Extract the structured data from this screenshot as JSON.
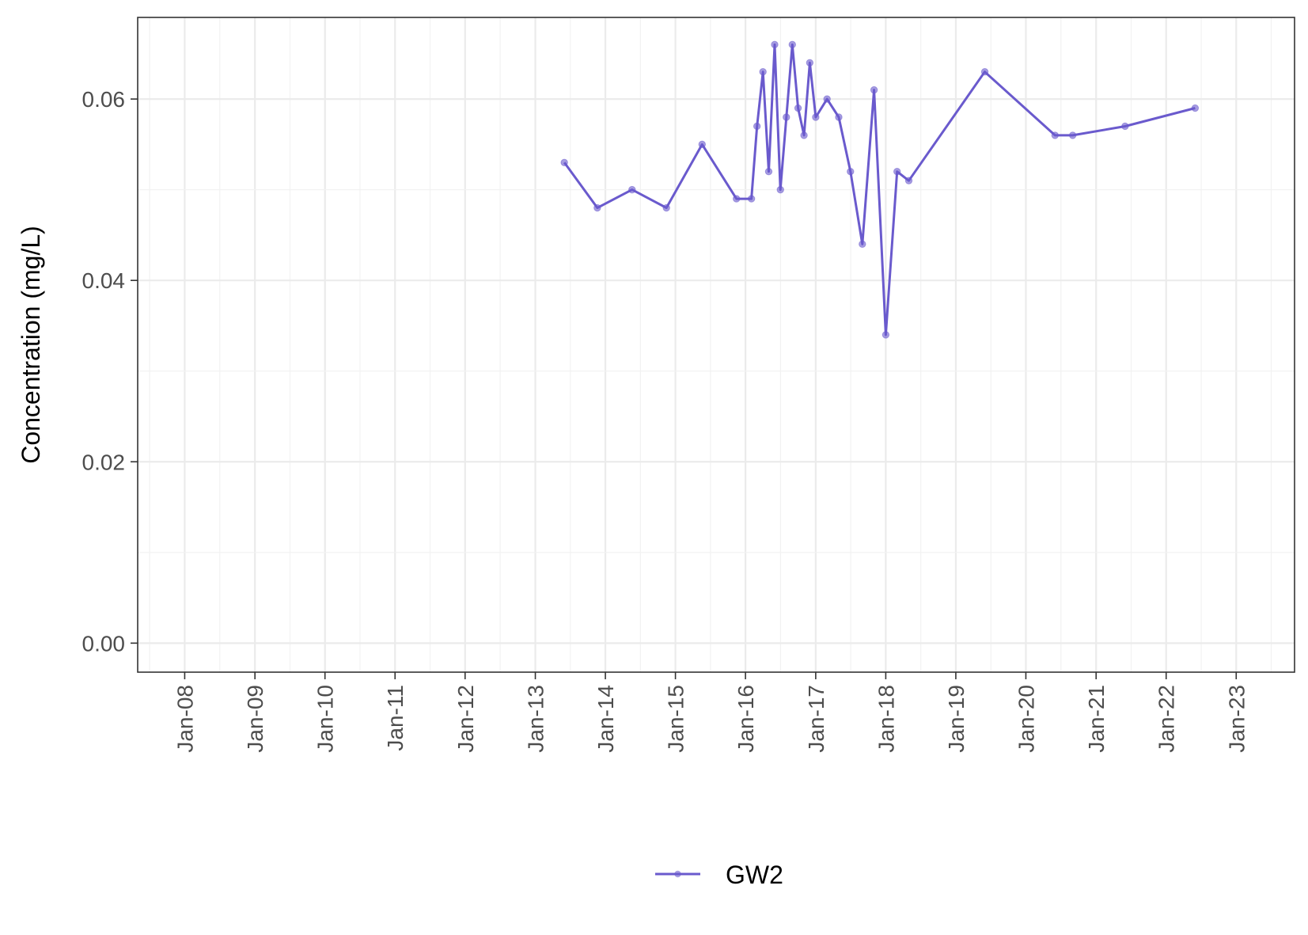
{
  "chart_data": {
    "type": "line",
    "title": "",
    "xlabel": "",
    "ylabel": "Concentration (mg/L)",
    "x_axis": {
      "type": "date",
      "range": [
        "2007-05-01",
        "2023-11-01"
      ],
      "tick_labels": [
        "Jan-08",
        "Jan-09",
        "Jan-10",
        "Jan-11",
        "Jan-12",
        "Jan-13",
        "Jan-14",
        "Jan-15",
        "Jan-16",
        "Jan-17",
        "Jan-18",
        "Jan-19",
        "Jan-20",
        "Jan-21",
        "Jan-22",
        "Jan-23"
      ],
      "tick_dates": [
        "2008-01-01",
        "2009-01-01",
        "2010-01-01",
        "2011-01-01",
        "2012-01-01",
        "2013-01-01",
        "2014-01-01",
        "2015-01-01",
        "2016-01-01",
        "2017-01-01",
        "2018-01-01",
        "2019-01-01",
        "2020-01-01",
        "2021-01-01",
        "2022-01-01",
        "2023-01-01"
      ]
    },
    "y_axis": {
      "range": [
        -0.0032,
        0.069
      ],
      "tick_values": [
        0.0,
        0.02,
        0.04,
        0.06
      ],
      "tick_labels": [
        "0.00",
        "0.02",
        "0.04",
        "0.06"
      ]
    },
    "grid": true,
    "legend_position": "bottom",
    "series": [
      {
        "name": "GW2",
        "color": "#6a5acd",
        "points": [
          {
            "x": "2013-06-01",
            "y": 0.053
          },
          {
            "x": "2013-11-20",
            "y": 0.048
          },
          {
            "x": "2014-05-20",
            "y": 0.05
          },
          {
            "x": "2014-11-15",
            "y": 0.048
          },
          {
            "x": "2015-05-20",
            "y": 0.055
          },
          {
            "x": "2015-11-15",
            "y": 0.049
          },
          {
            "x": "2016-02-01",
            "y": 0.049
          },
          {
            "x": "2016-03-01",
            "y": 0.057
          },
          {
            "x": "2016-04-01",
            "y": 0.063
          },
          {
            "x": "2016-05-01",
            "y": 0.052
          },
          {
            "x": "2016-06-01",
            "y": 0.066
          },
          {
            "x": "2016-07-01",
            "y": 0.05
          },
          {
            "x": "2016-08-01",
            "y": 0.058
          },
          {
            "x": "2016-09-01",
            "y": 0.066
          },
          {
            "x": "2016-10-01",
            "y": 0.059
          },
          {
            "x": "2016-11-01",
            "y": 0.056
          },
          {
            "x": "2016-12-01",
            "y": 0.064
          },
          {
            "x": "2017-01-01",
            "y": 0.058
          },
          {
            "x": "2017-03-01",
            "y": 0.06
          },
          {
            "x": "2017-05-01",
            "y": 0.058
          },
          {
            "x": "2017-07-01",
            "y": 0.052
          },
          {
            "x": "2017-09-01",
            "y": 0.044
          },
          {
            "x": "2017-11-01",
            "y": 0.061
          },
          {
            "x": "2018-01-01",
            "y": 0.034
          },
          {
            "x": "2018-03-01",
            "y": 0.052
          },
          {
            "x": "2018-05-01",
            "y": 0.051
          },
          {
            "x": "2019-06-01",
            "y": 0.063
          },
          {
            "x": "2020-06-01",
            "y": 0.056
          },
          {
            "x": "2020-09-01",
            "y": 0.056
          },
          {
            "x": "2021-06-01",
            "y": 0.057
          },
          {
            "x": "2022-06-01",
            "y": 0.059
          }
        ]
      }
    ]
  }
}
